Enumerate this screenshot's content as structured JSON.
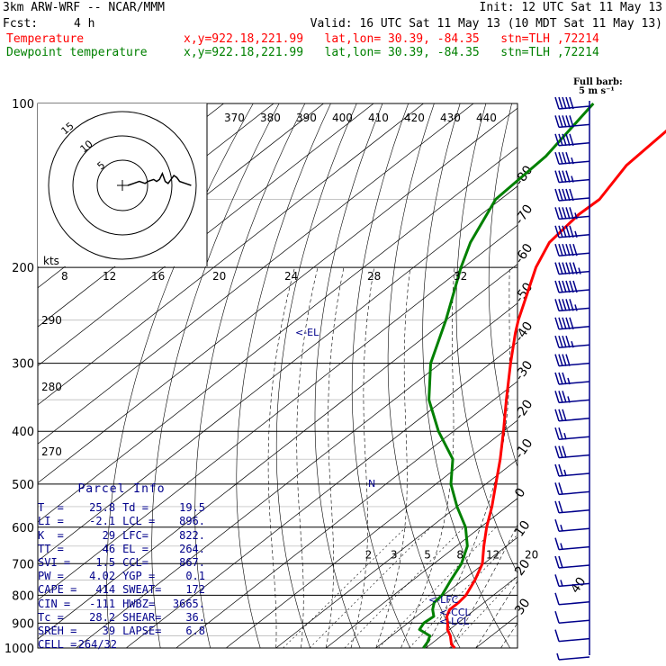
{
  "header": {
    "model": "3km ARW-WRF -- NCAR/MMM",
    "init": "Init: 12 UTC Sat 11 May 13",
    "fcst_label": "Fcst:",
    "fcst_value": "4 h",
    "valid": "Valid: 16 UTC Sat 11 May 13 (10 MDT Sat 11 May 13)",
    "line_temp": "Temperature",
    "line_dew": "Dewpoint temperature",
    "loc": "x,y=922.18,221.99   lat,lon= 30.39, -84.35   stn=TLH ,72214"
  },
  "colors": {
    "temperature": "#ff0000",
    "dewpoint": "#008000",
    "wind": "#00008b",
    "panel_text": "#00008b"
  },
  "barb_legend": {
    "line1": "Full barb:",
    "line2": "5 m s⁻¹"
  },
  "hodograph": {
    "units": "kts",
    "ring_labels": [
      "5",
      "10",
      "15"
    ],
    "speed_labels": [
      "8",
      "12",
      "16",
      "20",
      "24",
      "28",
      "32"
    ],
    "theta_labels": [
      "370",
      "380",
      "390",
      "400",
      "410",
      "420",
      "430",
      "440"
    ]
  },
  "parcel_info": {
    "title": "Parcel Info",
    "rows": [
      [
        "T  =",
        "25.8",
        "Td =",
        "19.5"
      ],
      [
        "LI =",
        "-2.1",
        "LCL =",
        "896."
      ],
      [
        "K  =",
        "29",
        "LFC=",
        "822."
      ],
      [
        "TT =",
        "46",
        "EL =",
        "264."
      ],
      [
        "SVI =",
        "1.5",
        "CCL=",
        "867."
      ],
      [
        "PW =",
        "4.02",
        "YGP =",
        "0.1"
      ],
      [
        "CAPE =",
        "414",
        "SWEAT=",
        "172"
      ],
      [
        "CIN =",
        "-111",
        "HWBZ=",
        "3665."
      ],
      [
        "Tc =",
        "28.2",
        "SHEAR=",
        "36."
      ],
      [
        "SREH =",
        "39",
        "LAPSE=",
        "6.8"
      ],
      [
        "CELL =",
        "264/32",
        "",
        ""
      ]
    ]
  },
  "chart_data": {
    "type": "line",
    "title": "",
    "xlabel": "",
    "ylabel": "",
    "y_scale": "log-pressure",
    "ylim": [
      1000,
      100
    ],
    "pressure_ticks": [
      "100",
      "200",
      "300",
      "400",
      "500",
      "600",
      "700",
      "800",
      "900",
      "1000"
    ],
    "isotherm_labels": [
      "-80",
      "-70",
      "-60",
      "-50",
      "-40",
      "-30",
      "-20",
      "-10",
      "0",
      "10",
      "20",
      "30",
      "40"
    ],
    "theta_e_labels": [
      "290",
      "280",
      "270"
    ],
    "mixing_ratio_labels": [
      "2",
      "3",
      "5",
      "8",
      "12",
      "20"
    ],
    "level_labels": [
      "<-EL",
      "<-LFC",
      "<-CCL",
      "<-LCL"
    ],
    "freezing_marker": "N",
    "series": [
      {
        "name": "Temperature",
        "points": [
          [
            1000,
            25.8
          ],
          [
            985,
            24.2
          ],
          [
            950,
            21.8
          ],
          [
            925,
            19.6
          ],
          [
            900,
            18.0
          ],
          [
            875,
            16.1
          ],
          [
            850,
            14.9
          ],
          [
            825,
            14.9
          ],
          [
            800,
            14.5
          ],
          [
            750,
            12.4
          ],
          [
            700,
            9.7
          ],
          [
            650,
            5.5
          ],
          [
            600,
            1.2
          ],
          [
            550,
            -3.0
          ],
          [
            500,
            -8.0
          ],
          [
            450,
            -13.5
          ],
          [
            400,
            -20.0
          ],
          [
            350,
            -27.5
          ],
          [
            300,
            -36.0
          ],
          [
            264,
            -42.8
          ],
          [
            250,
            -45.5
          ],
          [
            200,
            -55.5
          ],
          [
            180,
            -59.2
          ],
          [
            160,
            -60.5
          ],
          [
            150,
            -60.2
          ],
          [
            130,
            -63.5
          ],
          [
            100,
            -65.0
          ]
        ]
      },
      {
        "name": "Dewpoint temperature",
        "points": [
          [
            1000,
            19.5
          ],
          [
            975,
            18.8
          ],
          [
            950,
            17.7
          ],
          [
            925,
            14.0
          ],
          [
            900,
            13.2
          ],
          [
            875,
            13.5
          ],
          [
            850,
            11.5
          ],
          [
            825,
            10.0
          ],
          [
            800,
            9.7
          ],
          [
            750,
            7.6
          ],
          [
            700,
            5.5
          ],
          [
            650,
            2.2
          ],
          [
            600,
            -3.0
          ],
          [
            550,
            -10.0
          ],
          [
            500,
            -17.0
          ],
          [
            450,
            -23.0
          ],
          [
            400,
            -33.0
          ],
          [
            350,
            -43.0
          ],
          [
            300,
            -52.0
          ],
          [
            250,
            -60.0
          ],
          [
            200,
            -70.5
          ],
          [
            180,
            -75.0
          ],
          [
            150,
            -81.0
          ],
          [
            125,
            -82.0
          ],
          [
            100,
            -86.0
          ]
        ]
      }
    ],
    "wind_barb_speeds_ms": [
      25,
      25,
      25,
      22,
      22,
      25,
      27,
      27,
      30,
      32,
      30,
      27,
      25,
      22,
      20,
      17,
      17,
      15,
      12,
      15,
      12,
      10,
      10,
      7,
      7,
      10,
      7,
      5,
      5,
      5,
      2
    ],
    "hodograph_trace_kts": [
      [
        0,
        0
      ],
      [
        2,
        1
      ],
      [
        4,
        2
      ],
      [
        6,
        1
      ],
      [
        7,
        2
      ],
      [
        9,
        3
      ],
      [
        10,
        2
      ],
      [
        11,
        3
      ],
      [
        12,
        6
      ],
      [
        13,
        2
      ],
      [
        14,
        1
      ],
      [
        15,
        3
      ],
      [
        16,
        5
      ],
      [
        17,
        4
      ],
      [
        18,
        2
      ],
      [
        20,
        1
      ],
      [
        22,
        0
      ]
    ]
  }
}
